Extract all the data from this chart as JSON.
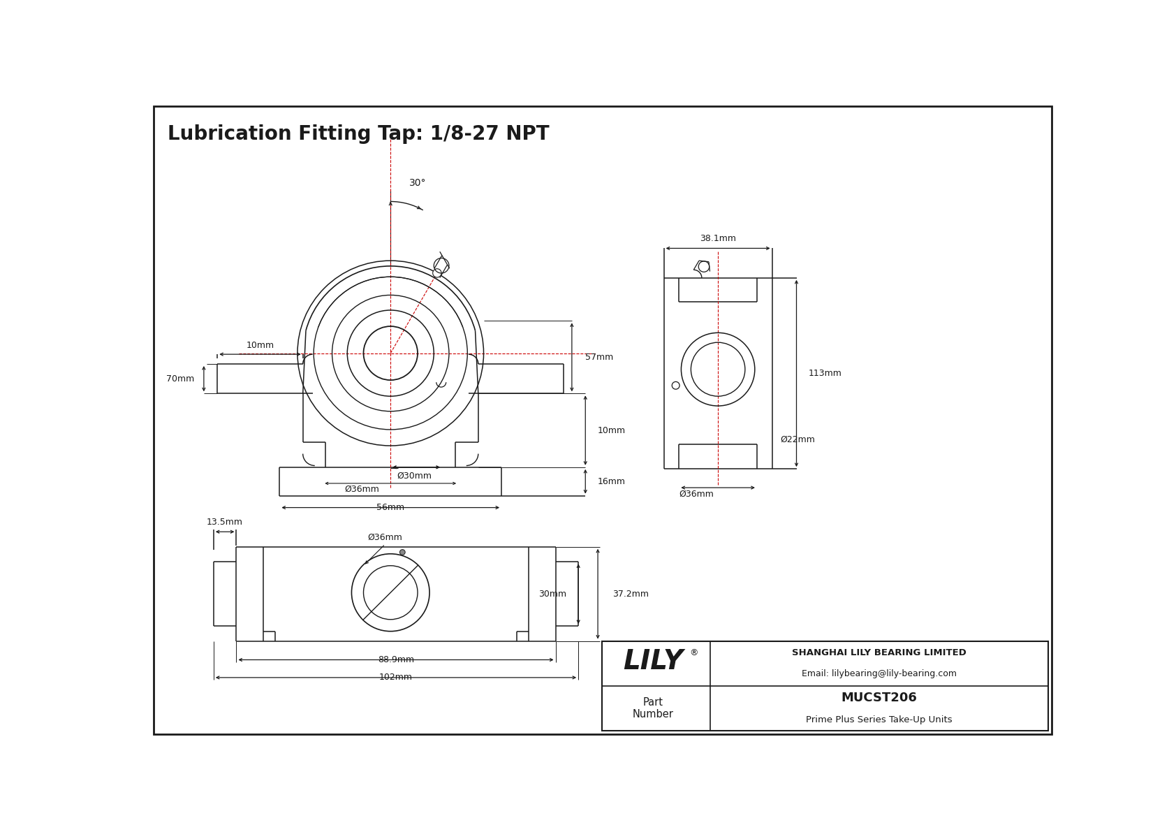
{
  "title": "Lubrication Fitting Tap: 1/8-27 NPT",
  "title_fontsize": 20,
  "background_color": "#ffffff",
  "line_color": "#1a1a1a",
  "dim_color": "#1a1a1a",
  "red_color": "#cc0000",
  "company_name": "SHANGHAI LILY BEARING LIMITED",
  "company_email": "Email: lilybearing@lily-bearing.com",
  "part_label": "Part\nNumber",
  "part_number": "MUCST206",
  "part_series": "Prime Plus Series Take-Up Units",
  "lily_logo": "LILY",
  "dimensions": {
    "angle": "30°",
    "d1": "Ø30mm",
    "d2": "Ø36mm",
    "d3": "Ø36mm",
    "d4": "Ø22mm",
    "w1": "56mm",
    "w2": "88.9mm",
    "w3": "102mm",
    "h1": "70mm",
    "h2": "57mm",
    "h3": "37.2mm",
    "h4": "30mm",
    "h5": "113mm",
    "h6": "38.1mm",
    "t1": "10mm",
    "t2": "10mm",
    "t3": "13.5mm",
    "t4": "16mm"
  }
}
